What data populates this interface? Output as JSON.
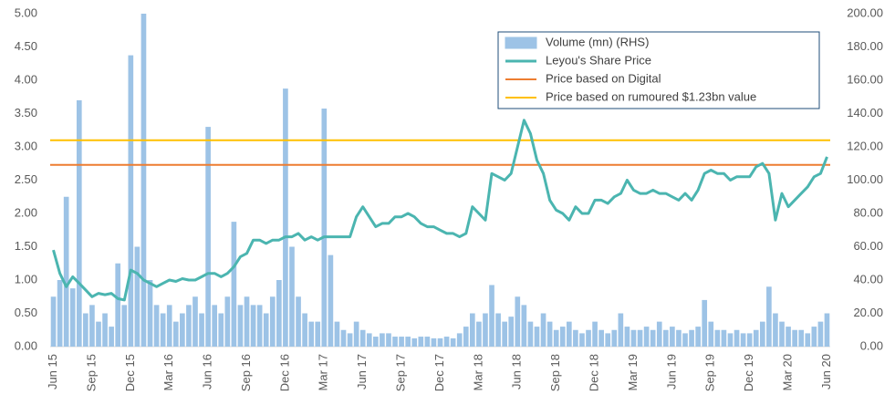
{
  "chart_data": {
    "type": "combo",
    "categories": [
      "Jun 15",
      null,
      null,
      null,
      null,
      null,
      "Sep 15",
      null,
      null,
      null,
      null,
      null,
      "Dec 15",
      null,
      null,
      null,
      null,
      null,
      "Mar 16",
      null,
      null,
      null,
      null,
      null,
      "Jun 16",
      null,
      null,
      null,
      null,
      null,
      "Sep 16",
      null,
      null,
      null,
      null,
      null,
      "Dec 16",
      null,
      null,
      null,
      null,
      null,
      "Mar 17",
      null,
      null,
      null,
      null,
      null,
      "Jun 17",
      null,
      null,
      null,
      null,
      null,
      "Sep 17",
      null,
      null,
      null,
      null,
      null,
      "Dec 17",
      null,
      null,
      null,
      null,
      null,
      "Mar 18",
      null,
      null,
      null,
      null,
      null,
      "Jun 18",
      null,
      null,
      null,
      null,
      null,
      "Sep 18",
      null,
      null,
      null,
      null,
      null,
      "Dec 18",
      null,
      null,
      null,
      null,
      null,
      "Mar 19",
      null,
      null,
      null,
      null,
      null,
      "Jun 19",
      null,
      null,
      null,
      null,
      null,
      "Sep 19",
      null,
      null,
      null,
      null,
      null,
      "Dec 19",
      null,
      null,
      null,
      null,
      null,
      "Mar 20",
      null,
      null,
      null,
      null,
      null,
      "Jun 20"
    ],
    "series": [
      {
        "name": "Volume (mn) (RHS)",
        "type": "bar",
        "axis": "y2",
        "color": "#9dc3e6",
        "values": [
          30,
          40,
          90,
          35,
          148,
          20,
          25,
          15,
          20,
          12,
          50,
          25,
          175,
          60,
          200,
          40,
          25,
          20,
          25,
          15,
          20,
          25,
          30,
          20,
          132,
          25,
          20,
          30,
          75,
          25,
          30,
          25,
          25,
          20,
          30,
          40,
          155,
          60,
          30,
          20,
          15,
          15,
          143,
          55,
          15,
          10,
          8,
          15,
          10,
          8,
          6,
          8,
          8,
          6,
          6,
          6,
          5,
          6,
          6,
          5,
          5,
          6,
          5,
          8,
          12,
          20,
          15,
          20,
          37,
          20,
          15,
          18,
          30,
          25,
          15,
          12,
          20,
          15,
          10,
          12,
          15,
          10,
          8,
          10,
          15,
          10,
          8,
          10,
          20,
          12,
          10,
          10,
          12,
          10,
          15,
          10,
          12,
          10,
          8,
          10,
          12,
          28,
          15,
          10,
          10,
          8,
          10,
          8,
          8,
          10,
          15,
          36,
          20,
          15,
          12,
          10,
          10,
          8,
          12,
          15,
          20
        ]
      },
      {
        "name": "Leyou's Share Price",
        "type": "line",
        "color": "#4bb5b0",
        "values": [
          1.45,
          1.1,
          0.9,
          1.05,
          0.95,
          0.85,
          0.75,
          0.8,
          0.78,
          0.8,
          0.72,
          0.7,
          1.15,
          1.1,
          1.0,
          0.95,
          0.9,
          0.95,
          1.0,
          0.98,
          1.02,
          1.0,
          1.0,
          1.05,
          1.1,
          1.1,
          1.05,
          1.1,
          1.2,
          1.35,
          1.4,
          1.6,
          1.6,
          1.55,
          1.6,
          1.6,
          1.65,
          1.65,
          1.7,
          1.6,
          1.65,
          1.6,
          1.65,
          1.65,
          1.65,
          1.65,
          1.65,
          1.95,
          2.1,
          1.95,
          1.8,
          1.85,
          1.85,
          1.95,
          1.95,
          2.0,
          1.95,
          1.85,
          1.8,
          1.8,
          1.75,
          1.7,
          1.7,
          1.65,
          1.7,
          2.1,
          2.0,
          1.9,
          2.6,
          2.55,
          2.5,
          2.6,
          3.0,
          3.4,
          3.2,
          2.8,
          2.6,
          2.2,
          2.05,
          2.0,
          1.9,
          2.1,
          2.0,
          2.0,
          2.2,
          2.2,
          2.15,
          2.25,
          2.3,
          2.5,
          2.35,
          2.3,
          2.3,
          2.35,
          2.3,
          2.3,
          2.25,
          2.2,
          2.3,
          2.2,
          2.35,
          2.6,
          2.65,
          2.6,
          2.6,
          2.5,
          2.55,
          2.55,
          2.55,
          2.7,
          2.75,
          2.6,
          1.9,
          2.3,
          2.1,
          2.2,
          2.3,
          2.4,
          2.55,
          2.6,
          2.85
        ]
      }
    ],
    "reference_lines": [
      {
        "name": "Price based on Digital",
        "value": 2.73,
        "color": "#ed7d31"
      },
      {
        "name": "Price based on rumoured $1.23bn value",
        "value": 3.1,
        "color": "#ffc000"
      }
    ],
    "ylim": [
      0,
      5
    ],
    "yticks": [
      {
        "value": 0,
        "label": "0.00"
      },
      {
        "value": 0.5,
        "label": "0.50"
      },
      {
        "value": 1,
        "label": "1.00"
      },
      {
        "value": 1.5,
        "label": "1.50"
      },
      {
        "value": 2,
        "label": "2.00"
      },
      {
        "value": 2.5,
        "label": "2.50"
      },
      {
        "value": 3,
        "label": "3.00"
      },
      {
        "value": 3.5,
        "label": "3.50"
      },
      {
        "value": 4,
        "label": "4.00"
      },
      {
        "value": 4.5,
        "label": "4.50"
      },
      {
        "value": 5,
        "label": "5.00"
      }
    ],
    "y2lim": [
      0,
      200
    ],
    "y2ticks": [
      {
        "value": 0,
        "label": "0.00"
      },
      {
        "value": 20,
        "label": "20.00"
      },
      {
        "value": 40,
        "label": "40.00"
      },
      {
        "value": 60,
        "label": "60.00"
      },
      {
        "value": 80,
        "label": "80.00"
      },
      {
        "value": 100,
        "label": "100.00"
      },
      {
        "value": 120,
        "label": "120.00"
      },
      {
        "value": 140,
        "label": "140.00"
      },
      {
        "value": 160,
        "label": "160.00"
      },
      {
        "value": 180,
        "label": "180.00"
      },
      {
        "value": 200,
        "label": "200.00"
      }
    ],
    "legend": "top-right"
  }
}
